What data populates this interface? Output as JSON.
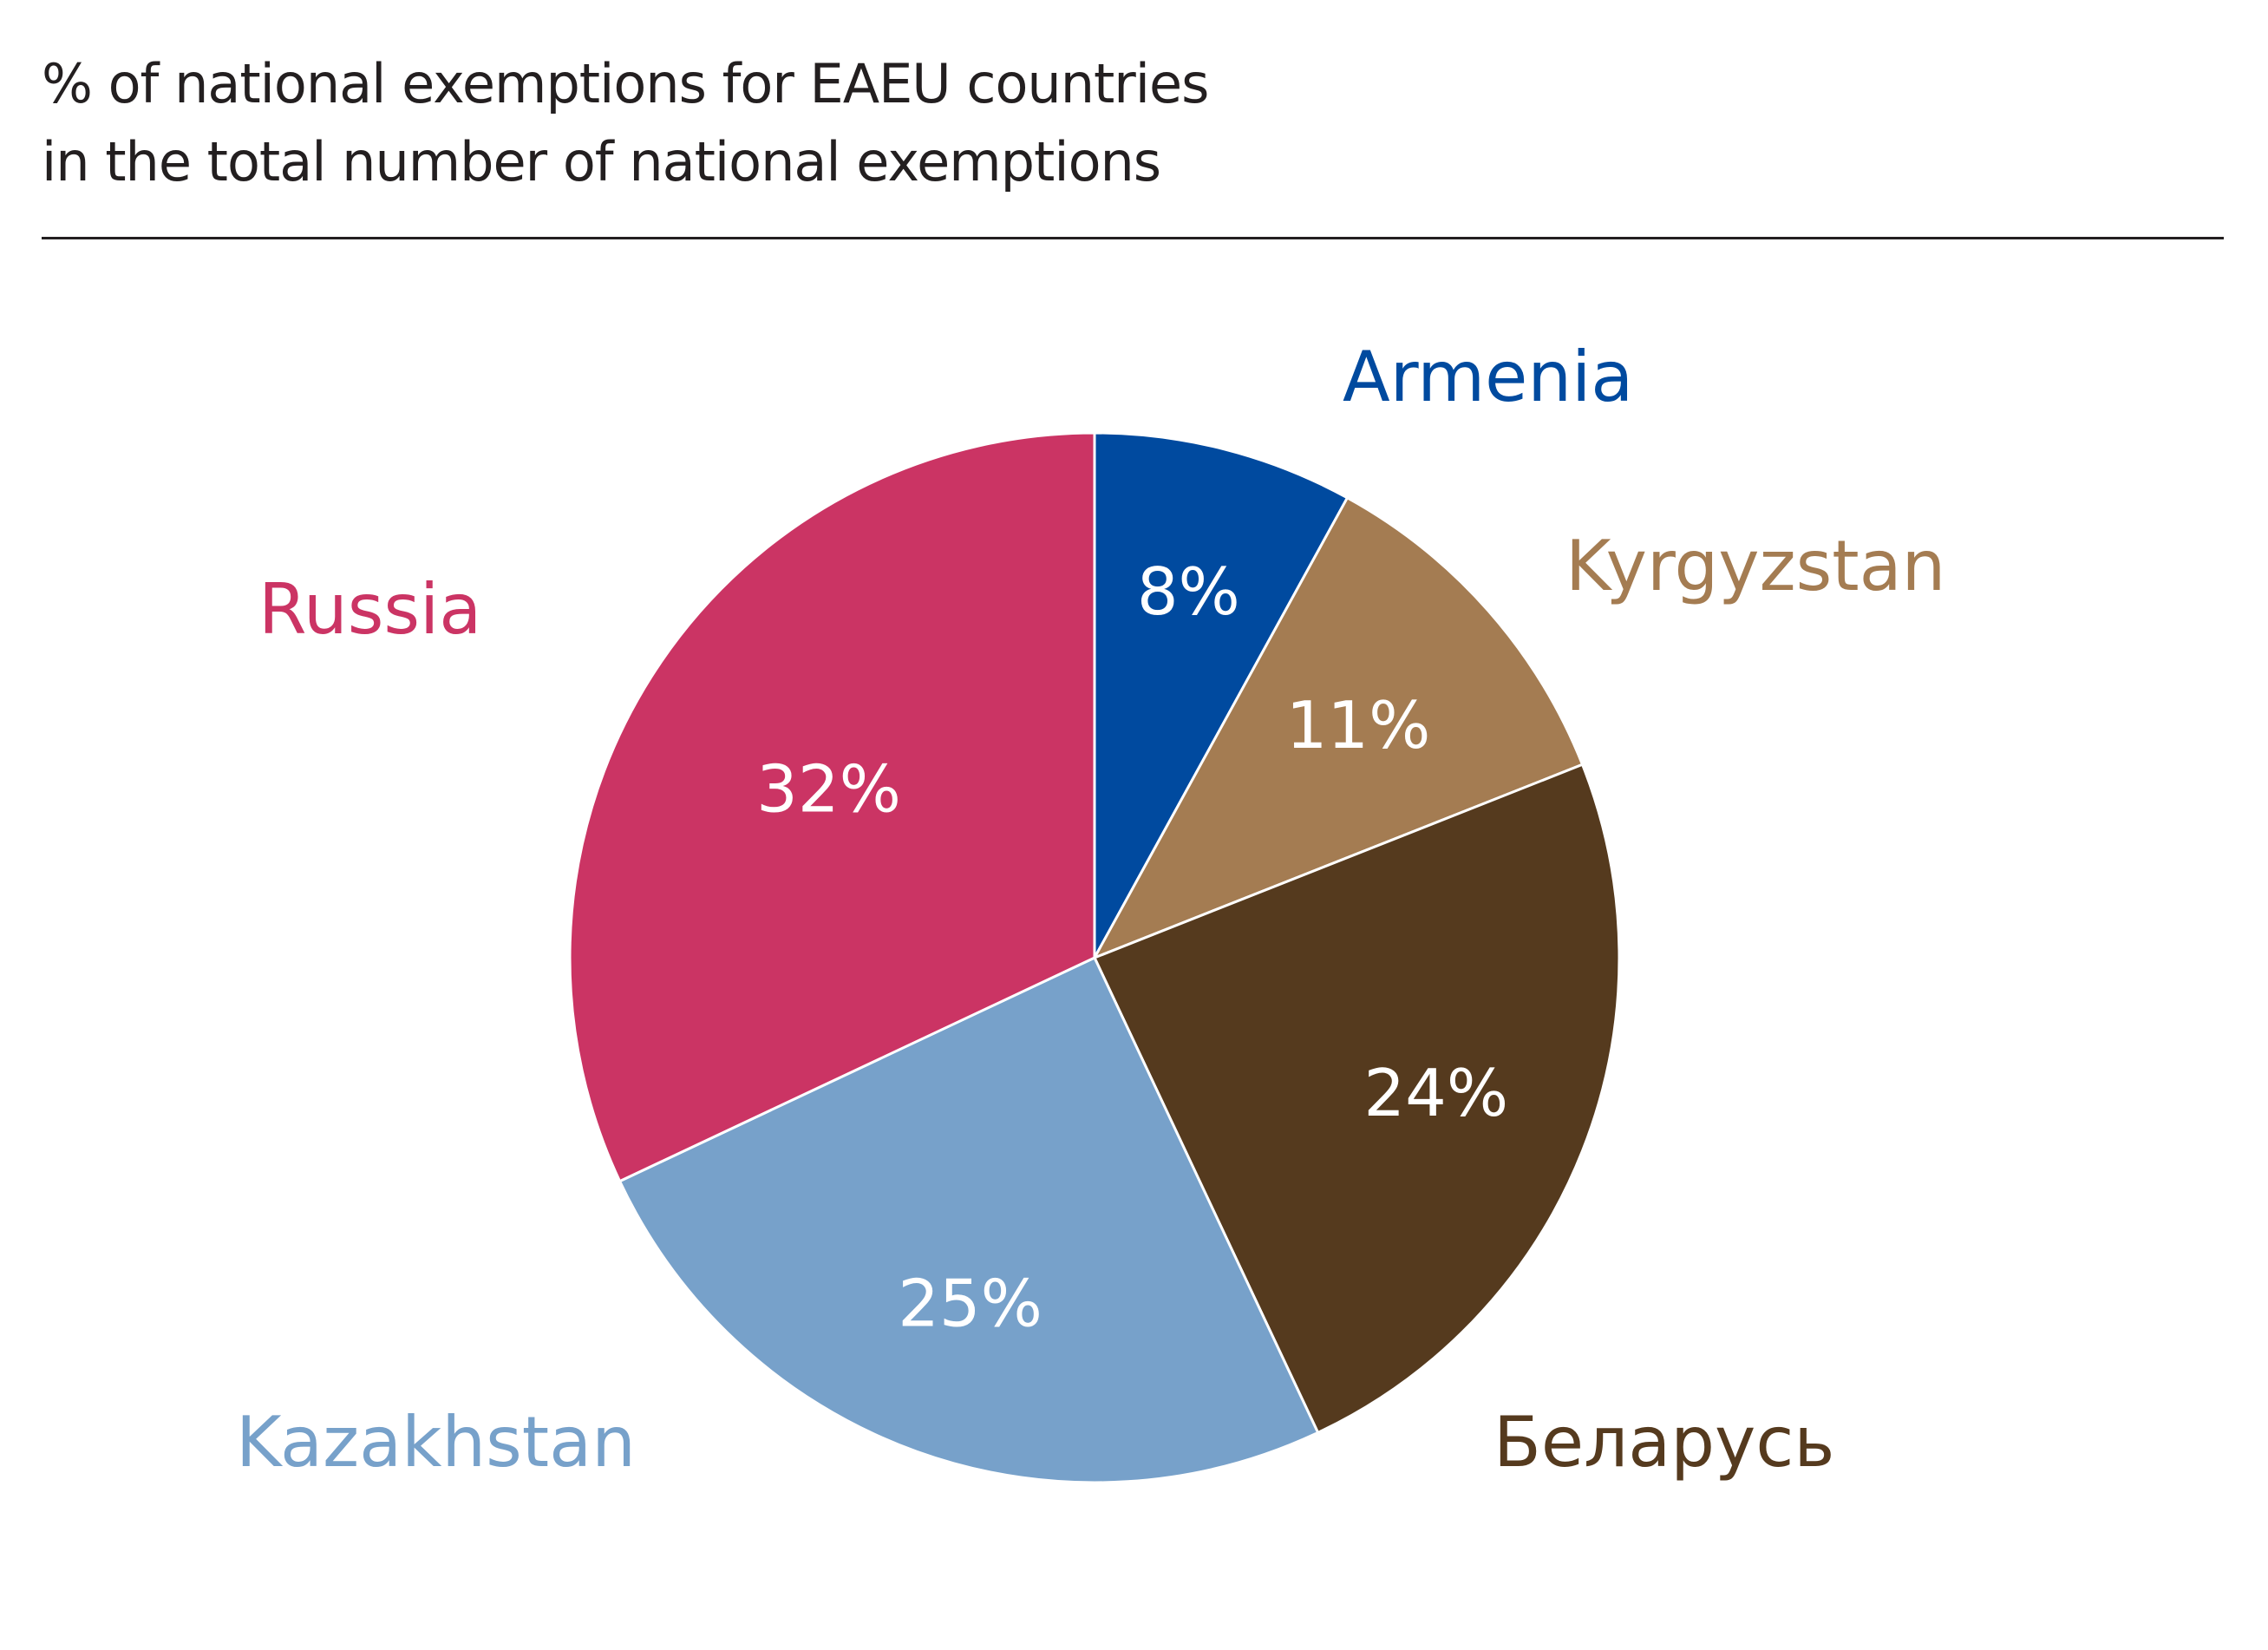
{
  "title": {
    "line1": "% of national exemptions for EAEU countries",
    "line2": "in the total number of national exemptions"
  },
  "chart_data": {
    "type": "pie",
    "start": "12 o'clock",
    "direction": "clockwise",
    "legend": "none",
    "slices": [
      {
        "name": "Armenia",
        "value": 8,
        "label": "8%",
        "color": "#004a9f"
      },
      {
        "name": "Kyrgyzstan",
        "value": 11,
        "label": "11%",
        "color": "#a47c52"
      },
      {
        "name": "Беларусь",
        "value": 24,
        "label": "24%",
        "color": "#553a1e"
      },
      {
        "name": "Kazakhstan",
        "value": 25,
        "label": "25%",
        "color": "#77a1ca"
      },
      {
        "name": "Russia",
        "value": 32,
        "label": "32%",
        "color": "#cb3464"
      }
    ]
  }
}
